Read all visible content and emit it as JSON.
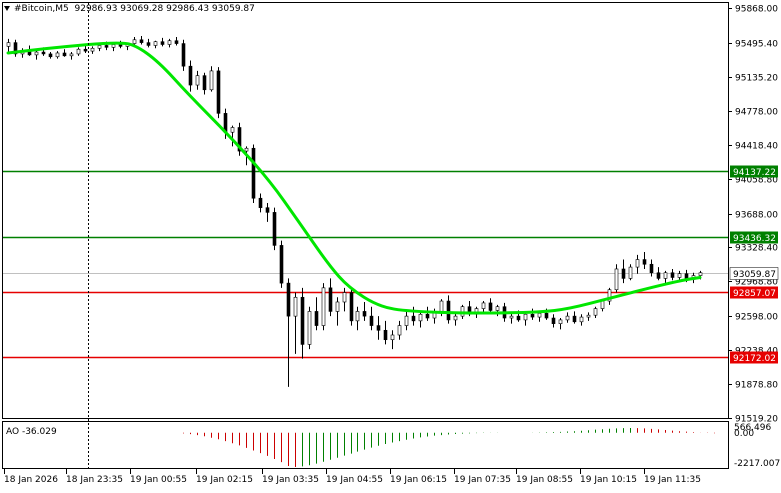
{
  "header": {
    "symbol": "#Bitcoin,M5",
    "prices": "92986.93 93069.28 92986.43 93059.87"
  },
  "indicator": {
    "name": "AO",
    "value": "-36.029",
    "label": "AO -36.029",
    "scale": [
      "566.496",
      "0.00",
      "-2217.007"
    ]
  },
  "colors": {
    "candles": "#000000",
    "moving_average": "#00e600",
    "resistance_line": "#008000",
    "support_line": "#e60000",
    "ao_up": "#008000",
    "ao_down": "#cc0000",
    "background": "#ffffff"
  },
  "chart_data": {
    "type": "candlestick",
    "timeframe": "M5",
    "ylim": [
      91520,
      95920
    ],
    "price_axis_ticks": [
      "95868.00",
      "95495.40",
      "95135.20",
      "94778.00",
      "94418.40",
      "94058.80",
      "93688.00",
      "93328.40",
      "92968.80",
      "92598.00",
      "92238.40",
      "91878.80",
      "91519.20"
    ],
    "time_axis_labels": [
      "18 Jan 2026",
      "18 Jan 23:35",
      "19 Jan 00:55",
      "19 Jan 02:15",
      "19 Jan 03:35",
      "19 Jan 04:55",
      "19 Jan 06:15",
      "19 Jan 07:35",
      "19 Jan 08:55",
      "19 Jan 10:15",
      "19 Jan 11:35"
    ],
    "horizontal_levels": [
      {
        "label": "94137.22",
        "value": 94137.22,
        "color": "#008000"
      },
      {
        "label": "93436.32",
        "value": 93436.32,
        "color": "#008000"
      },
      {
        "label": "92857.07",
        "value": 92857.07,
        "color": "#e60000"
      },
      {
        "label": "92172.02",
        "value": 92172.02,
        "color": "#e60000"
      }
    ],
    "current_price": {
      "label": "93059.87",
      "value": 93059.87
    },
    "moving_average": [
      {
        "i": 0,
        "v": 95390
      },
      {
        "i": 20,
        "v": 95440
      },
      {
        "i": 40,
        "v": 95480
      },
      {
        "i": 55,
        "v": 95500
      },
      {
        "i": 63,
        "v": 95480
      },
      {
        "i": 75,
        "v": 95300
      },
      {
        "i": 90,
        "v": 94950
      },
      {
        "i": 110,
        "v": 94520
      },
      {
        "i": 130,
        "v": 94050
      },
      {
        "i": 145,
        "v": 93600
      },
      {
        "i": 160,
        "v": 93140
      },
      {
        "i": 170,
        "v": 92900
      },
      {
        "i": 185,
        "v": 92700
      },
      {
        "i": 200,
        "v": 92650
      },
      {
        "i": 230,
        "v": 92630
      },
      {
        "i": 265,
        "v": 92640
      },
      {
        "i": 280,
        "v": 92680
      },
      {
        "i": 300,
        "v": 92790
      },
      {
        "i": 320,
        "v": 92900
      },
      {
        "i": 336,
        "v": 92980
      },
      {
        "i": 345,
        "v": 93010
      }
    ],
    "candles": [
      [
        95460,
        95540,
        95400,
        95500
      ],
      [
        95500,
        95530,
        95350,
        95380
      ],
      [
        95380,
        95440,
        95340,
        95410
      ],
      [
        95410,
        95470,
        95360,
        95370
      ],
      [
        95370,
        95420,
        95320,
        95400
      ],
      [
        95400,
        95450,
        95360,
        95380
      ],
      [
        95380,
        95400,
        95330,
        95350
      ],
      [
        95350,
        95410,
        95330,
        95390
      ],
      [
        95390,
        95430,
        95350,
        95360
      ],
      [
        95360,
        95400,
        95320,
        95380
      ],
      [
        95380,
        95450,
        95360,
        95430
      ],
      [
        95430,
        95470,
        95390,
        95410
      ],
      [
        95410,
        95460,
        95380,
        95440
      ],
      [
        95440,
        95500,
        95410,
        95470
      ],
      [
        95470,
        95510,
        95420,
        95450
      ],
      [
        95450,
        95490,
        95410,
        95480
      ],
      [
        95480,
        95520,
        95440,
        95460
      ],
      [
        95460,
        95500,
        95420,
        95490
      ],
      [
        95490,
        95560,
        95460,
        95530
      ],
      [
        95530,
        95570,
        95480,
        95500
      ],
      [
        95500,
        95540,
        95450,
        95470
      ],
      [
        95470,
        95520,
        95440,
        95510
      ],
      [
        95510,
        95550,
        95460,
        95480
      ],
      [
        95480,
        95540,
        95450,
        95520
      ],
      [
        95520,
        95560,
        95470,
        95490
      ],
      [
        95490,
        95530,
        95200,
        95250
      ],
      [
        95250,
        95310,
        94980,
        95050
      ],
      [
        95050,
        95200,
        95000,
        95150
      ],
      [
        95150,
        95180,
        94950,
        95000
      ],
      [
        95000,
        95250,
        94980,
        95200
      ],
      [
        95200,
        95240,
        94700,
        94750
      ],
      [
        94750,
        94800,
        94480,
        94550
      ],
      [
        94550,
        94620,
        94400,
        94600
      ],
      [
        94600,
        94650,
        94300,
        94350
      ],
      [
        94350,
        94400,
        94200,
        94380
      ],
      [
        94380,
        94420,
        93800,
        93850
      ],
      [
        93850,
        93900,
        93700,
        93750
      ],
      [
        93750,
        93800,
        93600,
        93700
      ],
      [
        93700,
        93750,
        93300,
        93350
      ],
      [
        93350,
        93400,
        92900,
        92950
      ],
      [
        92950,
        93000,
        91850,
        92600
      ],
      [
        92600,
        92850,
        92200,
        92800
      ],
      [
        92800,
        92900,
        92150,
        92300
      ],
      [
        92300,
        92700,
        92250,
        92650
      ],
      [
        92650,
        92800,
        92450,
        92500
      ],
      [
        92500,
        92950,
        92450,
        92900
      ],
      [
        92900,
        93000,
        92600,
        92650
      ],
      [
        92650,
        92800,
        92500,
        92750
      ],
      [
        92750,
        92900,
        92650,
        92850
      ],
      [
        92850,
        92900,
        92500,
        92550
      ],
      [
        92550,
        92700,
        92450,
        92650
      ],
      [
        92650,
        92750,
        92550,
        92600
      ],
      [
        92600,
        92700,
        92450,
        92500
      ],
      [
        92500,
        92600,
        92350,
        92450
      ],
      [
        92450,
        92550,
        92300,
        92350
      ],
      [
        92350,
        92450,
        92250,
        92400
      ],
      [
        92400,
        92550,
        92350,
        92500
      ],
      [
        92500,
        92650,
        92450,
        92600
      ],
      [
        92600,
        92700,
        92500,
        92550
      ],
      [
        92550,
        92650,
        92480,
        92620
      ],
      [
        92620,
        92700,
        92550,
        92580
      ],
      [
        92580,
        92680,
        92520,
        92640
      ],
      [
        92640,
        92780,
        92600,
        92760
      ],
      [
        92760,
        92820,
        92520,
        92560
      ],
      [
        92560,
        92640,
        92500,
        92600
      ],
      [
        92600,
        92720,
        92570,
        92700
      ],
      [
        92700,
        92760,
        92600,
        92620
      ],
      [
        92620,
        92700,
        92580,
        92680
      ],
      [
        92680,
        92760,
        92640,
        92740
      ],
      [
        92740,
        92790,
        92640,
        92660
      ],
      [
        92660,
        92720,
        92600,
        92700
      ],
      [
        92700,
        92740,
        92540,
        92580
      ],
      [
        92580,
        92640,
        92520,
        92600
      ],
      [
        92600,
        92660,
        92540,
        92560
      ],
      [
        92560,
        92640,
        92500,
        92620
      ],
      [
        92620,
        92680,
        92560,
        92590
      ],
      [
        92590,
        92650,
        92540,
        92630
      ],
      [
        92630,
        92680,
        92560,
        92580
      ],
      [
        92580,
        92620,
        92480,
        92520
      ],
      [
        92520,
        92580,
        92460,
        92560
      ],
      [
        92560,
        92640,
        92530,
        92600
      ],
      [
        92600,
        92650,
        92520,
        92540
      ],
      [
        92540,
        92620,
        92500,
        92590
      ],
      [
        92590,
        92640,
        92550,
        92610
      ],
      [
        92610,
        92700,
        92580,
        92680
      ],
      [
        92680,
        92780,
        92650,
        92760
      ],
      [
        92760,
        92900,
        92720,
        92880
      ],
      [
        92880,
        93150,
        92850,
        93100
      ],
      [
        93100,
        93200,
        92950,
        93000
      ],
      [
        93000,
        93150,
        92980,
        93120
      ],
      [
        93120,
        93250,
        93050,
        93200
      ],
      [
        93200,
        93280,
        93100,
        93150
      ],
      [
        93150,
        93200,
        93020,
        93060
      ],
      [
        93060,
        93120,
        92980,
        93000
      ],
      [
        93000,
        93080,
        92950,
        93060
      ],
      [
        93060,
        93100,
        92980,
        93010
      ],
      [
        93010,
        93080,
        92980,
        93050
      ],
      [
        93050,
        93090,
        92960,
        92990
      ],
      [
        92990,
        93060,
        92950,
        93030
      ],
      [
        93030,
        93080,
        92990,
        93060
      ]
    ],
    "ao_histogram": [
      0,
      0,
      0,
      0,
      0,
      0,
      0,
      0,
      0,
      0,
      0,
      0,
      0,
      0,
      0,
      0,
      0,
      0,
      0,
      0,
      0,
      0,
      0,
      0,
      0,
      -40,
      -90,
      -150,
      -230,
      -320,
      -420,
      -540,
      -680,
      -820,
      -980,
      -1150,
      -1320,
      -1500,
      -1700,
      -1900,
      -2150,
      -2217,
      -2180,
      -2100,
      -2000,
      -1880,
      -1750,
      -1620,
      -1480,
      -1350,
      -1220,
      -1090,
      -960,
      -840,
      -730,
      -630,
      -540,
      -450,
      -370,
      -300,
      -240,
      -190,
      -150,
      -110,
      -80,
      -60,
      -40,
      -25,
      -15,
      -8,
      -5,
      -3,
      -2,
      -1,
      0,
      10,
      20,
      30,
      45,
      60,
      80,
      100,
      130,
      160,
      200,
      230,
      260,
      280,
      300,
      310,
      300,
      280,
      250,
      220,
      180,
      140,
      100,
      70,
      40,
      -10,
      -20,
      -36
    ]
  }
}
